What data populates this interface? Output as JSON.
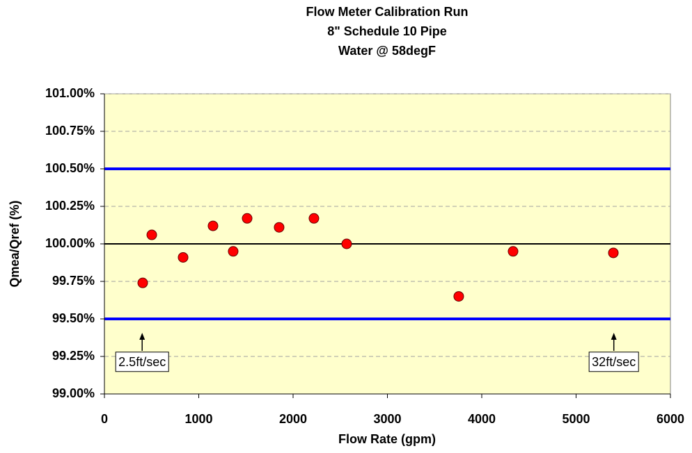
{
  "chart_data": {
    "type": "scatter",
    "title": [
      "Flow Meter Calibration Run",
      "8\" Schedule 10 Pipe",
      "Water @ 58degF"
    ],
    "x_label": "Flow Rate (gpm)",
    "y_label": "Qmea/Qref (%)",
    "series": [
      {
        "color": "#ff0000",
        "x": [
          406,
          502,
          834,
          1151,
          1365,
          1513,
          1852,
          2221,
          2568,
          3756,
          4332,
          5395
        ],
        "values": [
          99.74,
          100.06,
          99.91,
          100.12,
          99.95,
          100.17,
          100.11,
          100.17,
          100.0,
          99.65,
          99.95,
          99.94
        ]
      }
    ],
    "hlines": [
      {
        "value": 100.5,
        "color": "#0000ff"
      },
      {
        "value": 99.5,
        "color": "#0000ff"
      },
      {
        "value": 100.0,
        "color": "#000000"
      }
    ],
    "annotations": [
      {
        "text": "2.5ft/sec",
        "x": 400
      },
      {
        "text": "32ft/sec",
        "x": 5400
      }
    ],
    "xlim": [
      0,
      6000
    ],
    "xticks": [
      0,
      1000,
      2000,
      3000,
      4000,
      5000,
      6000
    ],
    "ylim": [
      99,
      101
    ],
    "yticks": [
      {
        "value": 99,
        "label": "99.00%"
      },
      {
        "value": 99.25,
        "label": "99.25%"
      },
      {
        "value": 99.5,
        "label": "99.50%"
      },
      {
        "value": 99.75,
        "label": "99.75%"
      },
      {
        "value": 100,
        "label": "100.00%"
      },
      {
        "value": 100.25,
        "label": "100.25%"
      },
      {
        "value": 100.5,
        "label": "100.50%"
      },
      {
        "value": 100.75,
        "label": "100.75%"
      },
      {
        "value": 101,
        "label": "101.00%"
      }
    ],
    "grid": true,
    "background": "#ffffcc"
  }
}
